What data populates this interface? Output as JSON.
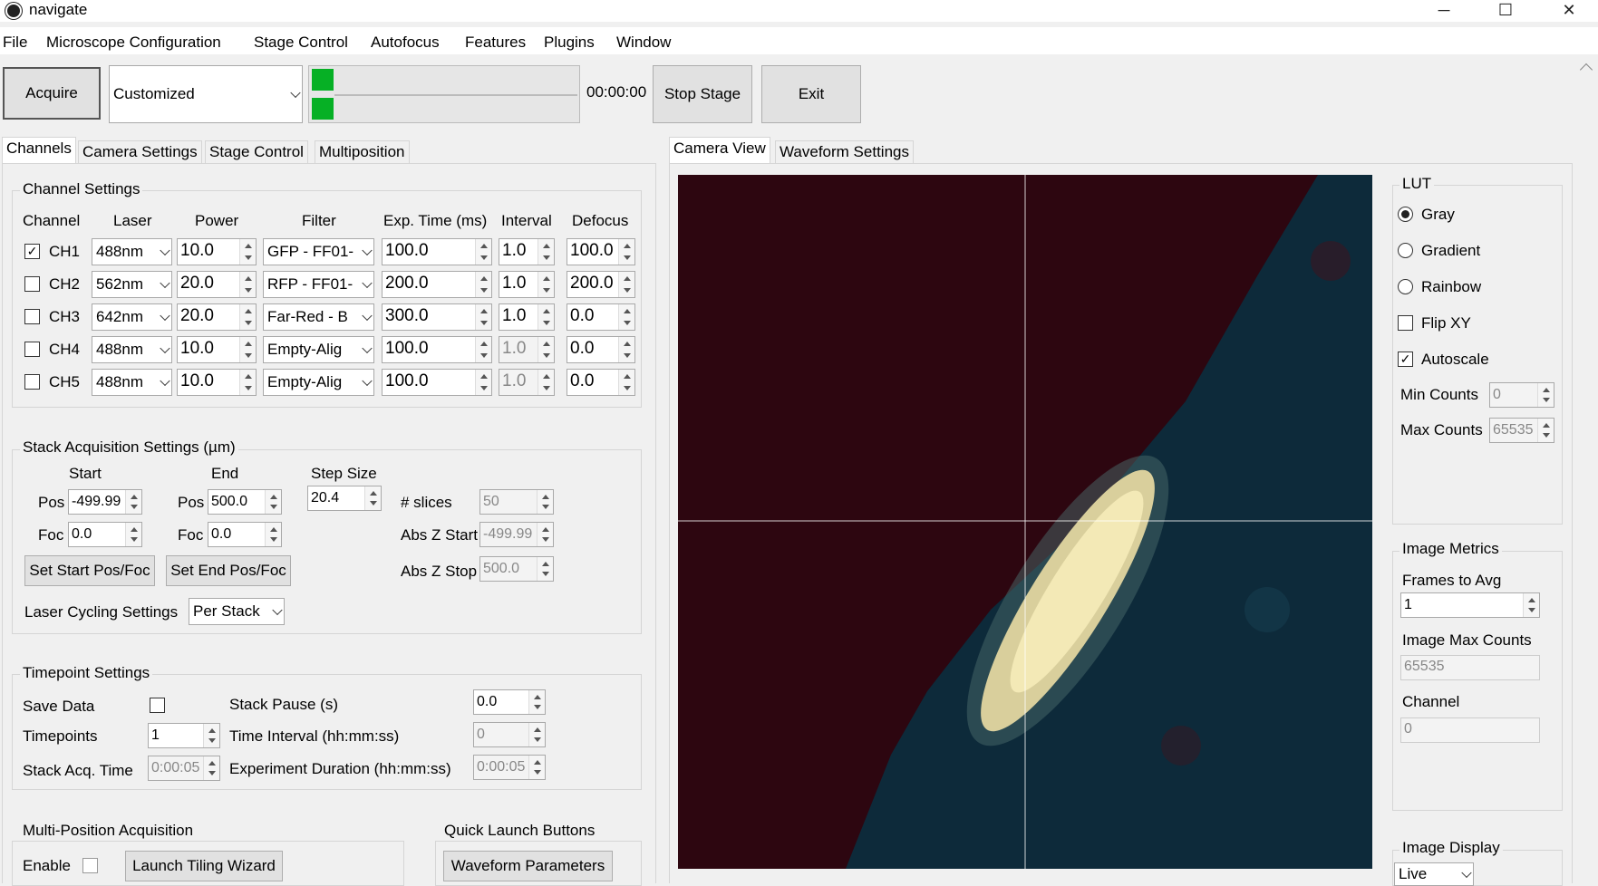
{
  "window": {
    "title": "navigate",
    "minimize": "─",
    "maximize": "☐",
    "close": "✕"
  },
  "menu": [
    "File",
    "Microscope Configuration",
    "Stage Control",
    "Autofocus",
    "Features",
    "Plugins",
    "Window"
  ],
  "toolbar": {
    "acquire": "Acquire",
    "mode": "Customized",
    "timer": "00:00:00",
    "stop_stage": "Stop Stage",
    "exit": "Exit"
  },
  "left_tabs": [
    "Channels",
    "Camera Settings",
    "Stage Control",
    "Multiposition"
  ],
  "channel_settings": {
    "title": "Channel Settings",
    "headers": [
      "Channel",
      "Laser",
      "Power",
      "Filter",
      "Exp. Time (ms)",
      "Interval",
      "Defocus"
    ],
    "rows": [
      {
        "checked": "✓",
        "name": "CH1",
        "laser": "488nm",
        "power": "10.0",
        "filter": "GFP - FF01-",
        "exp": "100.0",
        "interval": "1.0",
        "defocus": "100.0"
      },
      {
        "checked": "",
        "name": "CH2",
        "laser": "562nm",
        "power": "20.0",
        "filter": "RFP - FF01-",
        "exp": "200.0",
        "interval": "1.0",
        "defocus": "200.0"
      },
      {
        "checked": "",
        "name": "CH3",
        "laser": "642nm",
        "power": "20.0",
        "filter": "Far-Red - B",
        "exp": "300.0",
        "interval": "1.0",
        "defocus": "0.0"
      },
      {
        "checked": "",
        "name": "CH4",
        "laser": "488nm",
        "power": "10.0",
        "filter": "Empty-Alig",
        "exp": "100.0",
        "interval": "1.0",
        "defocus": "0.0"
      },
      {
        "checked": "",
        "name": "CH5",
        "laser": "488nm",
        "power": "10.0",
        "filter": "Empty-Alig",
        "exp": "100.0",
        "interval": "1.0",
        "defocus": "0.0"
      }
    ]
  },
  "stack": {
    "title": "Stack Acquisition Settings (µm)",
    "start_label": "Start",
    "end_label": "End",
    "step_label": "Step Size",
    "pos_label": "Pos",
    "foc_label": "Foc",
    "start_pos": "-499.99",
    "start_foc": "0.0",
    "end_pos": "500.0",
    "end_foc": "0.0",
    "step": "20.4",
    "slices_label": "# slices",
    "slices": "50",
    "abs_start_label": "Abs Z Start",
    "abs_start": "-499.99",
    "abs_stop_label": "Abs Z Stop",
    "abs_stop": "500.0",
    "set_start": "Set Start Pos/Foc",
    "set_end": "Set End Pos/Foc",
    "cycling_label": "Laser Cycling Settings",
    "cycling": "Per Stack"
  },
  "timepoint": {
    "title": "Timepoint Settings",
    "save_label": "Save Data",
    "timepoints_label": "Timepoints",
    "timepoints": "1",
    "acq_time_label": "Stack Acq. Time",
    "acq_time": "0:00:05",
    "pause_label": "Stack Pause (s)",
    "pause": "0.0",
    "interval_label": "Time Interval (hh:mm:ss)",
    "interval": "0",
    "duration_label": "Experiment Duration (hh:mm:ss)",
    "duration": "0:00:05"
  },
  "multipos": {
    "title": "Multi-Position Acquisition",
    "enable": "Enable",
    "wizard": "Launch Tiling Wizard"
  },
  "quick": {
    "title": "Quick Launch Buttons",
    "waveform": "Waveform Parameters"
  },
  "right_tabs": [
    "Camera View",
    "Waveform Settings"
  ],
  "lut": {
    "title": "LUT",
    "gray": "Gray",
    "gradient": "Gradient",
    "rainbow": "Rainbow",
    "flip": "Flip XY",
    "autoscale": "Autoscale",
    "autoscale_check": "✓",
    "min_label": "Min Counts",
    "min": "0",
    "max_label": "Max Counts",
    "max": "65535"
  },
  "metrics": {
    "title": "Image Metrics",
    "frames_label": "Frames to Avg",
    "frames": "1",
    "max_label": "Image Max Counts",
    "max": "65535",
    "channel_label": "Channel",
    "channel": "0"
  },
  "display": {
    "title": "Image Display",
    "mode": "Live"
  },
  "colors": {
    "image_bg": "#2d0610",
    "sample_bg": "#0d2a3a",
    "specimen": "#f3e9b6"
  }
}
